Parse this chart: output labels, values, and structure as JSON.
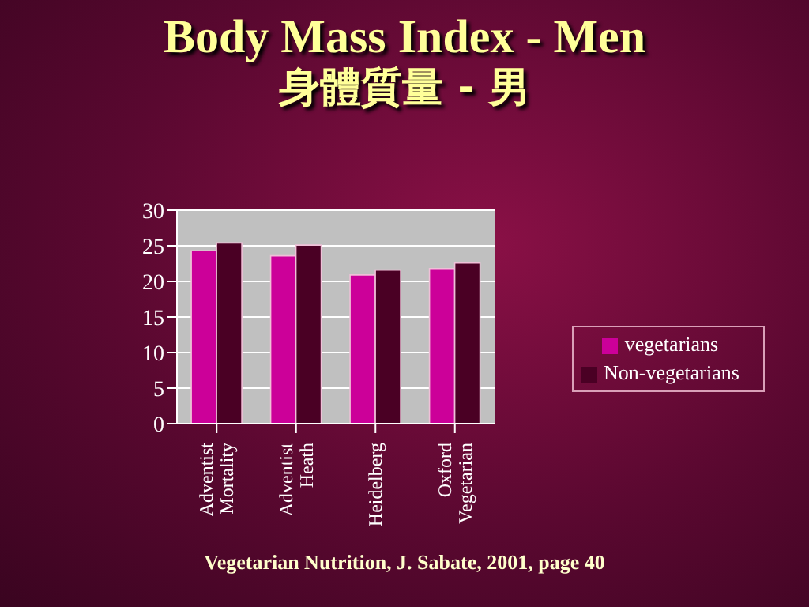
{
  "chart_data": {
    "type": "bar",
    "title": "Body Mass Index - Men",
    "subtitle": "身體質量 - 男",
    "categories": [
      "Adventist Mortality",
      "Adventist Heath",
      "Heidelberg",
      "Oxford Vegetarian"
    ],
    "series": [
      {
        "name": "vegetarians",
        "color": "#cc0099",
        "values": [
          24.3,
          23.6,
          20.9,
          21.8
        ]
      },
      {
        "name": "Non-vegetarians",
        "color": "#4a0024",
        "values": [
          25.4,
          25.1,
          21.6,
          22.6
        ]
      }
    ],
    "ylim": [
      0,
      30
    ],
    "yticks": [
      0,
      5,
      10,
      15,
      20,
      25,
      30
    ],
    "grid": "y",
    "legend": "right",
    "annotations": [
      "Vegetarian Nutrition, J. Sabate, 2001, page 40"
    ]
  }
}
